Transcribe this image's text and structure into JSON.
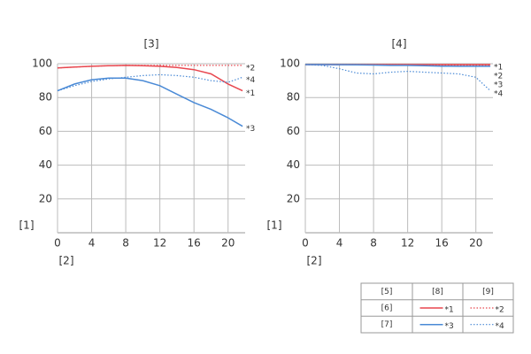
{
  "chart_data": [
    {
      "type": "line",
      "title": "[3]",
      "x_label": "[2]",
      "y_label": "[1]",
      "x": [
        0,
        2,
        4,
        6,
        8,
        10,
        12,
        14,
        16,
        18,
        20,
        21.7
      ],
      "xlim": [
        0,
        22
      ],
      "xticks": [
        0,
        4,
        8,
        12,
        16,
        20
      ],
      "ylim": [
        0,
        100
      ],
      "yticks": [
        20,
        40,
        60,
        80,
        100
      ],
      "grid": true,
      "series": [
        {
          "name": "*1",
          "color": "#e8474f",
          "line_style": "solid",
          "values": [
            97.5,
            98,
            98.5,
            98.8,
            99,
            98.8,
            98.5,
            97.8,
            96.5,
            94,
            88,
            84
          ]
        },
        {
          "name": "*2",
          "color": "#e8474f",
          "line_style": "dotted",
          "values": [
            97.5,
            98,
            98.5,
            98.8,
            99,
            99,
            99,
            99,
            99,
            99,
            99,
            99
          ]
        },
        {
          "name": "*3",
          "color": "#4a8ad6",
          "line_style": "solid",
          "values": [
            84,
            88,
            90.5,
            91.5,
            91.5,
            90,
            87,
            82,
            77,
            73,
            68,
            63
          ]
        },
        {
          "name": "*4",
          "color": "#4a8ad6",
          "line_style": "dotted",
          "values": [
            84,
            87,
            89.5,
            91,
            92,
            93,
            93.5,
            93,
            92,
            90,
            89,
            92
          ]
        }
      ]
    },
    {
      "type": "line",
      "title": "[4]",
      "x_label": "[2]",
      "y_label": "[1]",
      "x": [
        0,
        2,
        4,
        6,
        8,
        10,
        12,
        14,
        16,
        18,
        20,
        21.7
      ],
      "xlim": [
        0,
        22
      ],
      "xticks": [
        0,
        4,
        8,
        12,
        16,
        20
      ],
      "ylim": [
        0,
        100
      ],
      "yticks": [
        20,
        40,
        60,
        80,
        100
      ],
      "grid": true,
      "series": [
        {
          "name": "*1",
          "color": "#e8474f",
          "line_style": "solid",
          "values": [
            99.5,
            99.5,
            99.5,
            99.5,
            99.5,
            99.5,
            99.5,
            99.5,
            99.5,
            99.5,
            99.5,
            99.5
          ]
        },
        {
          "name": "*2",
          "color": "#e8474f",
          "line_style": "dotted",
          "values": [
            99.5,
            99.5,
            99.5,
            99.5,
            99.5,
            99.5,
            99.5,
            99.3,
            99.2,
            99,
            99,
            99
          ]
        },
        {
          "name": "*3",
          "color": "#4a8ad6",
          "line_style": "solid",
          "values": [
            99.5,
            99.5,
            99.4,
            99.3,
            99.2,
            99,
            99,
            98.8,
            98.6,
            98.5,
            98.5,
            98.5
          ]
        },
        {
          "name": "*4",
          "color": "#4a8ad6",
          "line_style": "dotted",
          "values": [
            99.5,
            99,
            97,
            94.5,
            94,
            95,
            95.5,
            95,
            94.5,
            94,
            92,
            84
          ]
        }
      ]
    }
  ],
  "legend": {
    "header": [
      "[5]",
      "[8]",
      "[9]"
    ],
    "row_labels": [
      "[6]",
      "[7]"
    ]
  }
}
